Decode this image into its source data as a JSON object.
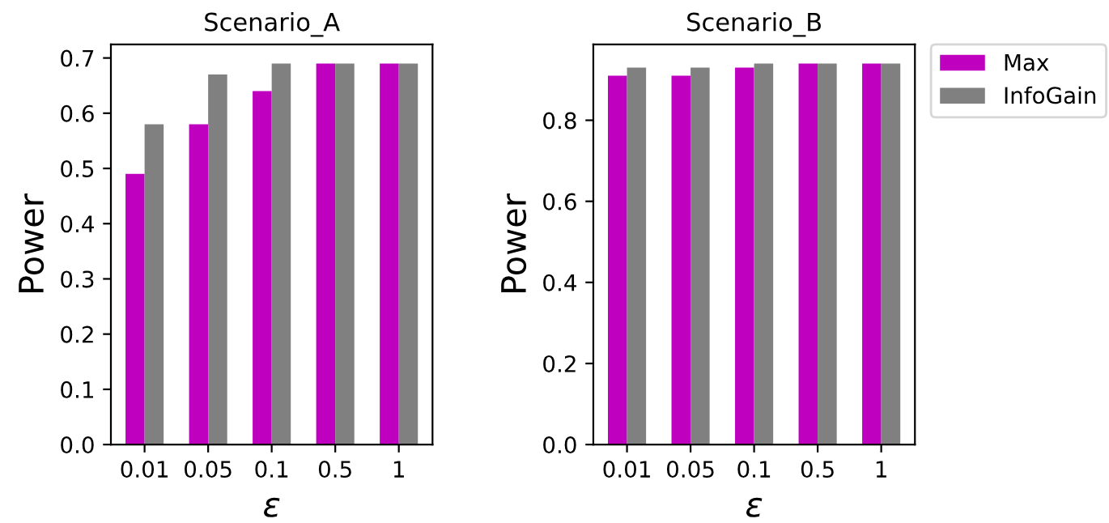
{
  "chart_data": [
    {
      "type": "bar",
      "title": "Scenario_A",
      "xlabel": "ε",
      "ylabel": "Power",
      "categories": [
        "0.01",
        "0.05",
        "0.1",
        "0.5",
        "1"
      ],
      "series": [
        {
          "color": "#bf00bf",
          "values": [
            0.49,
            0.58,
            0.64,
            0.69,
            0.69
          ]
        },
        {
          "color": "#808080",
          "values": [
            0.58,
            0.67,
            0.69,
            0.69,
            0.69
          ]
        }
      ],
      "ylim": [
        0,
        0.7245
      ],
      "yticks": [
        {
          "value": 0,
          "label": "0.0"
        },
        0.1,
        0.2,
        0.3,
        0.4,
        0.5,
        0.6,
        0.7
      ],
      "grid": false
    },
    {
      "type": "bar",
      "title": "Scenario_B",
      "xlabel": "ε",
      "ylabel": "Power",
      "categories": [
        "0.01",
        "0.05",
        "0.1",
        "0.5",
        "1"
      ],
      "series": [
        {
          "name": "Max",
          "color": "#bf00bf",
          "values": [
            0.91,
            0.91,
            0.93,
            0.94,
            0.94
          ]
        },
        {
          "name": "InfoGain",
          "color": "#808080",
          "values": [
            0.93,
            0.93,
            0.94,
            0.94,
            0.94
          ]
        }
      ],
      "ylim": [
        0,
        0.987
      ],
      "yticks": [
        {
          "value": 0,
          "label": "0.0"
        },
        0.2,
        0.4,
        0.6,
        0.8
      ],
      "grid": false,
      "legend": "right"
    }
  ]
}
